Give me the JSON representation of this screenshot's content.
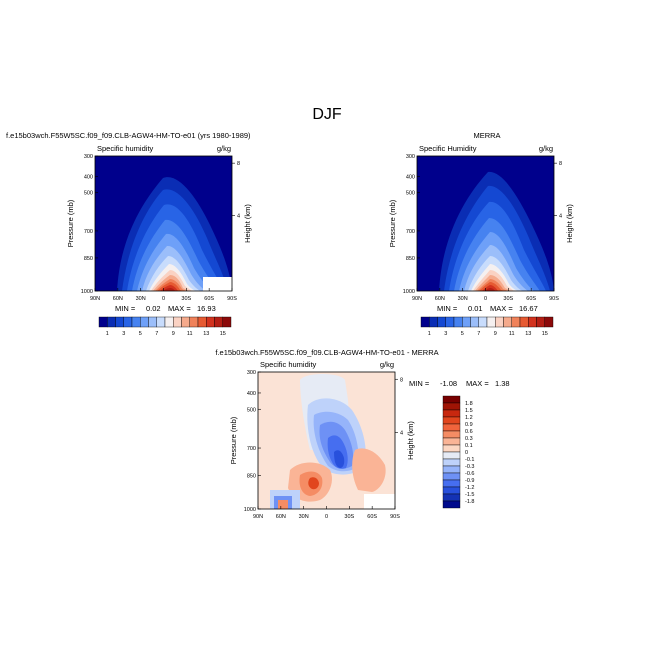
{
  "page_title": "DJF",
  "chart_data": [
    {
      "type": "contour",
      "title": "f.e15b03wch.F55W5SC.f09_f09.CLB-AGW4-HM-TO-e01 (yrs 1980-1989)",
      "subtitle_left": "Specific humidity",
      "subtitle_right": "g/kg",
      "ylabel": "Pressure (mb)",
      "ylabel_right": "Height (km)",
      "x_ticks": [
        "90N",
        "60N",
        "30N",
        "0",
        "30S",
        "60S",
        "90S"
      ],
      "y_ticks": [
        "300",
        "400",
        "500",
        "700",
        "850",
        "1000"
      ],
      "y_ticks_right": [
        "8",
        "4"
      ],
      "ylim": [
        1000,
        300
      ],
      "min_label": "MIN =",
      "min_value": "0.02",
      "max_label": "MAX =",
      "max_value": "16.93",
      "colorbar_labels": [
        "1",
        "3",
        "5",
        "7",
        "9",
        "11",
        "13",
        "15"
      ],
      "colorbar_colors": [
        "#00008c",
        "#0a2db4",
        "#1448d2",
        "#2864e6",
        "#4682f0",
        "#6ea0f8",
        "#9bbefa",
        "#c8dcfc",
        "#f5f0f0",
        "#fad2c3",
        "#f5aa8c",
        "#f0825a",
        "#e65a32",
        "#d2321e",
        "#b41e14",
        "#8c0a0a"
      ]
    },
    {
      "type": "contour",
      "title": "MERRA",
      "subtitle_left": "Specific Humidity",
      "subtitle_right": "g/kg",
      "ylabel": "Pressure (mb)",
      "ylabel_right": "Height (km)",
      "x_ticks": [
        "90N",
        "60N",
        "30N",
        "0",
        "30S",
        "60S",
        "90S"
      ],
      "y_ticks": [
        "300",
        "400",
        "500",
        "700",
        "850",
        "1000"
      ],
      "y_ticks_right": [
        "8",
        "4"
      ],
      "ylim": [
        1000,
        300
      ],
      "min_label": "MIN =",
      "min_value": "0.01",
      "max_label": "MAX =",
      "max_value": "16.67",
      "colorbar_labels": [
        "1",
        "3",
        "5",
        "7",
        "9",
        "11",
        "13",
        "15"
      ]
    },
    {
      "type": "contour",
      "title": "f.e15b03wch.F55W5SC.f09_f09.CLB-AGW4-HM-TO-e01 - MERRA",
      "subtitle_left": "Specific humidity",
      "subtitle_right": "g/kg",
      "ylabel": "Pressure (mb)",
      "ylabel_right": "Height (km)",
      "x_ticks": [
        "90N",
        "60N",
        "30N",
        "0",
        "30S",
        "60S",
        "90S"
      ],
      "y_ticks": [
        "300",
        "400",
        "500",
        "700",
        "850",
        "1000"
      ],
      "y_ticks_right": [
        "8",
        "4"
      ],
      "ylim": [
        1000,
        300
      ],
      "min_label": "MIN =",
      "min_value": "-1.08",
      "max_label": "MAX =",
      "max_value": "1.38",
      "colorbar_labels": [
        "1.8",
        "1.5",
        "1.2",
        "0.9",
        "0.6",
        "0.3",
        "0.1",
        "0",
        "-0.1",
        "-0.3",
        "-0.6",
        "-0.9",
        "-1.2",
        "-1.5",
        "-1.8"
      ],
      "colorbar_colors": [
        "#780000",
        "#a01405",
        "#c8280f",
        "#e1461e",
        "#f0643c",
        "#f58c64",
        "#fab496",
        "#fcd7c3",
        "#e6ebf5",
        "#bed2fa",
        "#96b4fa",
        "#6e91f5",
        "#466ef0",
        "#2850dc",
        "#1432b4",
        "#000a8c"
      ]
    }
  ]
}
